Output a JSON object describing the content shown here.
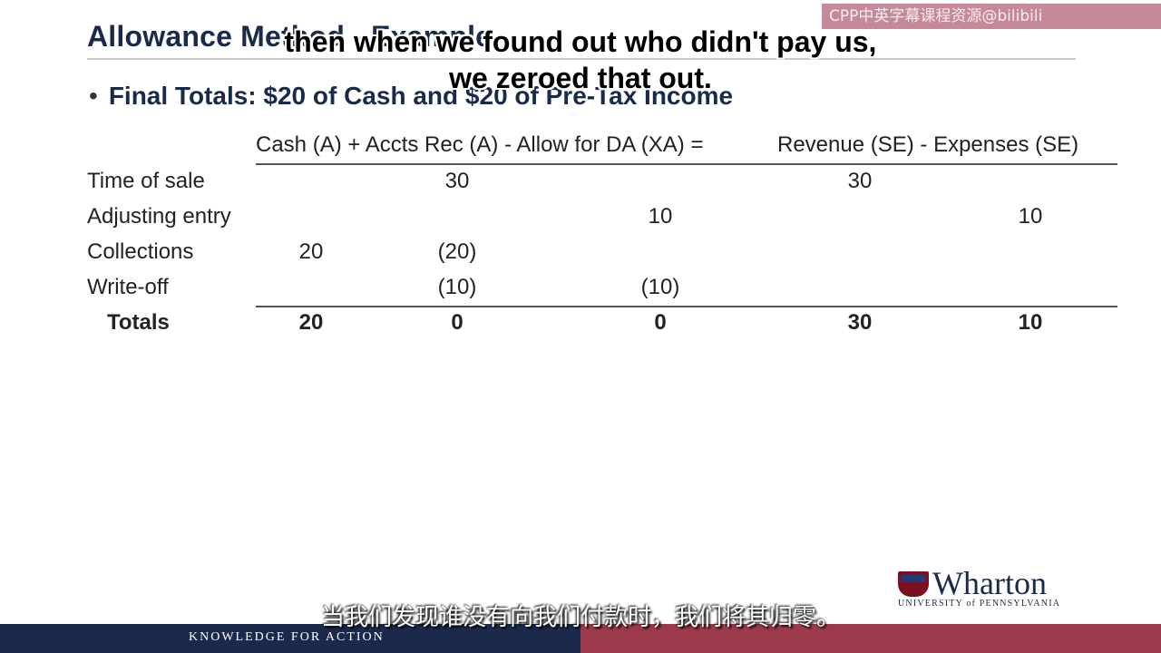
{
  "slide": {
    "title": "Allowance Method - Example",
    "bullet": "Final Totals: $20 of Cash and $20 of Pre-Tax Income"
  },
  "watermark": "CPP中英字幕课程资源@bilibili",
  "ledger": {
    "header_left": "Cash (A) + Accts Rec (A) - Allow for DA (XA) =",
    "header_right": "Revenue (SE) - Expenses (SE)",
    "rows": [
      {
        "label": "Time of sale",
        "cash": "",
        "ar": "30",
        "allow": "",
        "rev": "30",
        "exp": ""
      },
      {
        "label": "Adjusting entry",
        "cash": "",
        "ar": "",
        "allow": "10",
        "rev": "",
        "exp": "10"
      },
      {
        "label": "Collections",
        "cash": "20",
        "ar": "(20)",
        "allow": "",
        "rev": "",
        "exp": ""
      },
      {
        "label": "Write-off",
        "cash": "",
        "ar": "(10)",
        "allow": "(10)",
        "rev": "",
        "exp": ""
      }
    ],
    "totals": {
      "label": "Totals",
      "cash": "20",
      "ar": "0",
      "allow": "0",
      "rev": "30",
      "exp": "10"
    }
  },
  "captions": {
    "en_line1": "then when we found out who didn't pay us,",
    "en_line2": "we zeroed that out.",
    "zh": "当我们发现谁没有向我们付款时，我们将其归零。"
  },
  "logo": {
    "word": "Wharton",
    "sub": "UNIVERSITY of PENNSYLVANIA"
  },
  "footer": {
    "tagline": "KNOWLEDGE FOR ACTION"
  }
}
